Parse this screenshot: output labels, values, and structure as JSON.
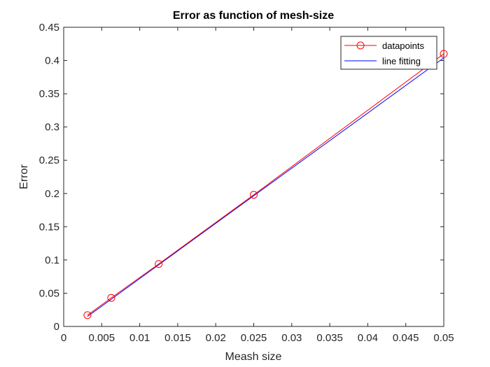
{
  "chart_data": {
    "type": "line",
    "title": "Error as function of mesh-size",
    "xlabel": "Meash size",
    "ylabel": "Error",
    "xlim": [
      0,
      0.05
    ],
    "ylim": [
      0,
      0.45
    ],
    "xticks": [
      0,
      0.005,
      0.01,
      0.015,
      0.02,
      0.025,
      0.03,
      0.035,
      0.04,
      0.045,
      0.05
    ],
    "xtick_labels": [
      "0",
      "0.005",
      "0.01",
      "0.015",
      "0.02",
      "0.025",
      "0.03",
      "0.035",
      "0.04",
      "0.045",
      "0.05"
    ],
    "yticks": [
      0,
      0.05,
      0.1,
      0.15,
      0.2,
      0.25,
      0.3,
      0.35,
      0.4,
      0.45
    ],
    "ytick_labels": [
      "0",
      "0.05",
      "0.1",
      "0.15",
      "0.2",
      "0.25",
      "0.3",
      "0.35",
      "0.4",
      "0.45"
    ],
    "grid": false,
    "legend_position": "top-right",
    "series": [
      {
        "name": "datapoints",
        "color": "#ff0000",
        "marker": "circle",
        "x": [
          0.003125,
          0.00625,
          0.0125,
          0.025,
          0.05
        ],
        "y": [
          0.017,
          0.043,
          0.094,
          0.198,
          0.41
        ]
      },
      {
        "name": "line fitting",
        "color": "#0000ff",
        "marker": "none",
        "x": [
          0.003125,
          0.05
        ],
        "y": [
          0.015,
          0.404
        ]
      }
    ]
  }
}
